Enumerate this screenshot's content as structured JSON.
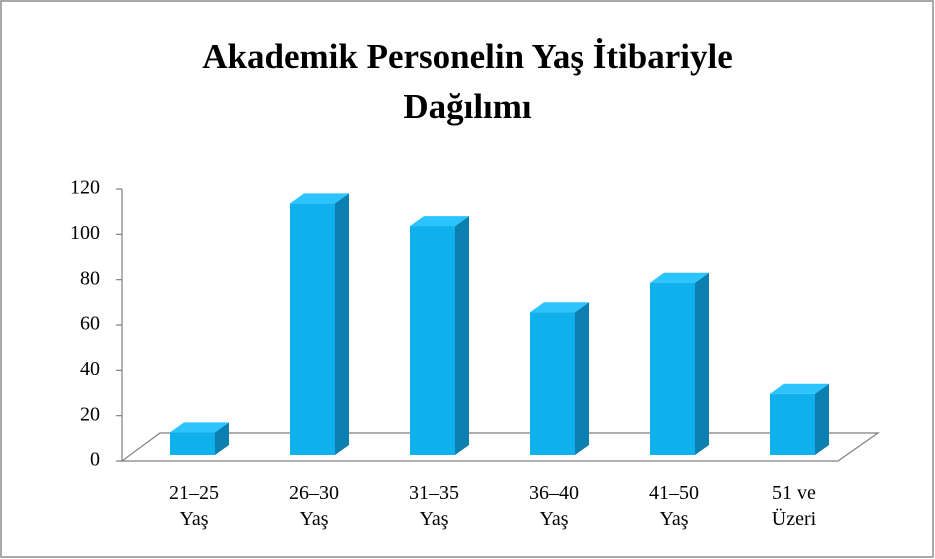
{
  "chart_data": {
    "type": "bar",
    "title": "Akademik Personelin Yaş İtibariyle Dağılımı",
    "categories": [
      "21–25 Yaş",
      "26–30 Yaş",
      "31–35 Yaş",
      "36–40 Yaş",
      "41–50 Yaş",
      "51 ve Üzeri"
    ],
    "values": [
      10,
      111,
      101,
      63,
      76,
      27
    ],
    "color": "#0fb0ec",
    "ylim": [
      0,
      120
    ],
    "yticks": [
      0,
      20,
      40,
      60,
      80,
      100,
      120
    ],
    "grid": false
  }
}
